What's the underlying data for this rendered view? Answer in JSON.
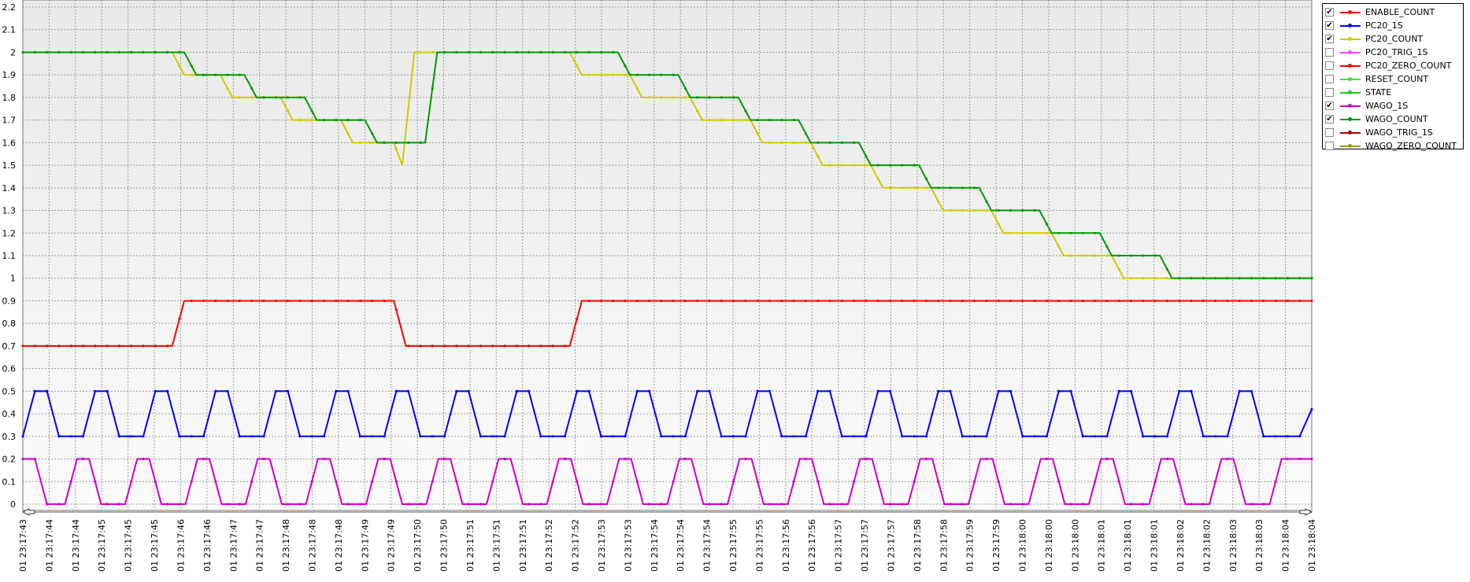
{
  "chart_data": {
    "type": "line",
    "title": "",
    "xlabel": "",
    "ylabel": "",
    "ylim": [
      0,
      2.2
    ],
    "yticks": [
      "0",
      "0.1",
      "0.2",
      "0.3",
      "0.4",
      "0.5",
      "0.6",
      "0.7",
      "0.8",
      "0.9",
      "1",
      "1.1",
      "1.2",
      "1.3",
      "1.4",
      "1.5",
      "1.6",
      "1.7",
      "1.8",
      "1.9",
      "2",
      "2.1",
      "2.2"
    ],
    "xticks": [
      "01 23:17:43",
      "01 23:17:44",
      "01 23:17:44",
      "01 23:17:45",
      "01 23:17:45",
      "01 23:17:45",
      "01 23:17:46",
      "01 23:17:46",
      "01 23:17:47",
      "01 23:17:47",
      "01 23:17:48",
      "01 23:17:48",
      "01 23:17:48",
      "01 23:17:49",
      "01 23:17:49",
      "01 23:17:50",
      "01 23:17:50",
      "01 23:17:51",
      "01 23:17:51",
      "01 23:17:51",
      "01 23:17:52",
      "01 23:17:52",
      "01 23:17:53",
      "01 23:17:53",
      "01 23:17:54",
      "01 23:17:54",
      "01 23:17:54",
      "01 23:17:55",
      "01 23:17:55",
      "01 23:17:56",
      "01 23:17:56",
      "01 23:17:57",
      "01 23:17:57",
      "01 23:17:57",
      "01 23:17:58",
      "01 23:17:58",
      "01 23:17:59",
      "01 23:17:59",
      "01 23:18:00",
      "01 23:18:00",
      "01 23:18:00",
      "01 23:18:01",
      "01 23:18:01",
      "01 23:18:01",
      "01 23:18:02",
      "01 23:18:02",
      "01 23:18:03",
      "01 23:18:03",
      "01 23:18:04",
      "01 23:18:04"
    ],
    "grid": true,
    "legend_position": "top-right",
    "legend": [
      {
        "name": "ENABLE_COUNT",
        "checked": true,
        "color": "#ff0000"
      },
      {
        "name": "PC20_1S",
        "checked": true,
        "color": "#0000ff"
      },
      {
        "name": "PC20_COUNT",
        "checked": true,
        "color": "#cccc00"
      },
      {
        "name": "PC20_TRIG_1S",
        "checked": false,
        "color": "#ff44ff"
      },
      {
        "name": "PC20_ZERO_COUNT",
        "checked": false,
        "color": "#ff0000"
      },
      {
        "name": "RESET_COUNT",
        "checked": false,
        "color": "#44dd44"
      },
      {
        "name": "STATE",
        "checked": false,
        "color": "#22cc22"
      },
      {
        "name": "WAGO_1S",
        "checked": true,
        "color": "#cc00cc"
      },
      {
        "name": "WAGO_COUNT",
        "checked": true,
        "color": "#009900"
      },
      {
        "name": "WAGO_TRIG_1S",
        "checked": false,
        "color": "#aa0000"
      },
      {
        "name": "WAGO_ZERO_COUNT",
        "checked": false,
        "color": "#999900"
      }
    ],
    "series": [
      {
        "name": "ENABLE_COUNT",
        "color": "#ff0000",
        "points": [
          [
            0,
            0.7
          ],
          [
            12.4,
            0.7
          ],
          [
            13.4,
            0.9
          ],
          [
            30.8,
            0.9
          ],
          [
            31.8,
            0.7
          ],
          [
            45.4,
            0.7
          ],
          [
            46.4,
            0.9
          ],
          [
            107,
            0.9
          ]
        ]
      },
      {
        "name": "PC20_COUNT",
        "color": "#cccc00",
        "points": [
          [
            0,
            2.0
          ],
          [
            12.4,
            2.0
          ],
          [
            13.4,
            1.9
          ],
          [
            16.4,
            1.9
          ],
          [
            17.4,
            1.8
          ],
          [
            21.4,
            1.8
          ],
          [
            22.4,
            1.7
          ],
          [
            26.4,
            1.7
          ],
          [
            27.4,
            1.6
          ],
          [
            30.8,
            1.6
          ],
          [
            31.5,
            1.5
          ],
          [
            32.5,
            2.0
          ],
          [
            45.4,
            2.0
          ],
          [
            46.4,
            1.9
          ],
          [
            50.4,
            1.9
          ],
          [
            51.4,
            1.8
          ],
          [
            55.4,
            1.8
          ],
          [
            56.4,
            1.7
          ],
          [
            60.4,
            1.7
          ],
          [
            61.4,
            1.6
          ],
          [
            65.4,
            1.6
          ],
          [
            66.4,
            1.5
          ],
          [
            70.4,
            1.5
          ],
          [
            71.4,
            1.4
          ],
          [
            75.4,
            1.4
          ],
          [
            76.4,
            1.3
          ],
          [
            80.4,
            1.3
          ],
          [
            81.4,
            1.2
          ],
          [
            85.4,
            1.2
          ],
          [
            86.4,
            1.1
          ],
          [
            90.4,
            1.1
          ],
          [
            91.4,
            1.0
          ],
          [
            107,
            1.0
          ]
        ]
      },
      {
        "name": "WAGO_COUNT",
        "color": "#009900",
        "points": [
          [
            0,
            2.0
          ],
          [
            13.4,
            2.0
          ],
          [
            14.4,
            1.9
          ],
          [
            18.4,
            1.9
          ],
          [
            19.4,
            1.8
          ],
          [
            23.4,
            1.8
          ],
          [
            24.4,
            1.7
          ],
          [
            28.4,
            1.7
          ],
          [
            29.4,
            1.6
          ],
          [
            33.4,
            1.6
          ],
          [
            34.4,
            2.0
          ],
          [
            49.4,
            2.0
          ],
          [
            50.4,
            1.9
          ],
          [
            54.4,
            1.9
          ],
          [
            55.4,
            1.8
          ],
          [
            59.4,
            1.8
          ],
          [
            60.4,
            1.7
          ],
          [
            64.4,
            1.7
          ],
          [
            65.4,
            1.6
          ],
          [
            69.4,
            1.6
          ],
          [
            70.4,
            1.5
          ],
          [
            74.4,
            1.5
          ],
          [
            75.4,
            1.4
          ],
          [
            79.4,
            1.4
          ],
          [
            80.4,
            1.3
          ],
          [
            84.4,
            1.3
          ],
          [
            85.4,
            1.2
          ],
          [
            89.4,
            1.2
          ],
          [
            90.4,
            1.1
          ],
          [
            94.4,
            1.1
          ],
          [
            95.4,
            1.0
          ],
          [
            107,
            1.0
          ]
        ]
      },
      {
        "name": "PC20_1S",
        "color": "#0000ff",
        "points": [
          [
            0,
            0.3
          ],
          [
            1,
            0.5
          ],
          [
            2,
            0.5
          ],
          [
            3,
            0.3
          ],
          [
            5,
            0.3
          ],
          [
            6,
            0.5
          ],
          [
            7,
            0.5
          ],
          [
            8,
            0.3
          ],
          [
            10,
            0.3
          ],
          [
            11,
            0.5
          ],
          [
            12,
            0.5
          ],
          [
            13,
            0.3
          ],
          [
            15,
            0.3
          ],
          [
            16,
            0.5
          ],
          [
            17,
            0.5
          ],
          [
            18,
            0.3
          ],
          [
            20,
            0.3
          ],
          [
            21,
            0.5
          ],
          [
            22,
            0.5
          ],
          [
            23,
            0.3
          ],
          [
            25,
            0.3
          ],
          [
            26,
            0.5
          ],
          [
            27,
            0.5
          ],
          [
            28,
            0.3
          ],
          [
            30,
            0.3
          ],
          [
            31,
            0.5
          ],
          [
            32,
            0.5
          ],
          [
            33,
            0.3
          ],
          [
            35,
            0.3
          ],
          [
            36,
            0.5
          ],
          [
            37,
            0.5
          ],
          [
            38,
            0.3
          ],
          [
            40,
            0.3
          ],
          [
            41,
            0.5
          ],
          [
            42,
            0.5
          ],
          [
            43,
            0.3
          ],
          [
            45,
            0.3
          ],
          [
            46,
            0.5
          ],
          [
            47,
            0.5
          ],
          [
            48,
            0.3
          ],
          [
            50,
            0.3
          ],
          [
            51,
            0.5
          ],
          [
            52,
            0.5
          ],
          [
            53,
            0.3
          ],
          [
            55,
            0.3
          ],
          [
            56,
            0.5
          ],
          [
            57,
            0.5
          ],
          [
            58,
            0.3
          ],
          [
            60,
            0.3
          ],
          [
            61,
            0.5
          ],
          [
            62,
            0.5
          ],
          [
            63,
            0.3
          ],
          [
            65,
            0.3
          ],
          [
            66,
            0.5
          ],
          [
            67,
            0.5
          ],
          [
            68,
            0.3
          ],
          [
            70,
            0.3
          ],
          [
            71,
            0.5
          ],
          [
            72,
            0.5
          ],
          [
            73,
            0.3
          ],
          [
            75,
            0.3
          ],
          [
            76,
            0.5
          ],
          [
            77,
            0.5
          ],
          [
            78,
            0.3
          ],
          [
            80,
            0.3
          ],
          [
            81,
            0.5
          ],
          [
            82,
            0.5
          ],
          [
            83,
            0.3
          ],
          [
            85,
            0.3
          ],
          [
            86,
            0.5
          ],
          [
            87,
            0.5
          ],
          [
            88,
            0.3
          ],
          [
            90,
            0.3
          ],
          [
            91,
            0.5
          ],
          [
            92,
            0.5
          ],
          [
            93,
            0.3
          ],
          [
            95,
            0.3
          ],
          [
            96,
            0.5
          ],
          [
            97,
            0.5
          ],
          [
            98,
            0.3
          ],
          [
            100,
            0.3
          ],
          [
            101,
            0.5
          ],
          [
            102,
            0.5
          ],
          [
            103,
            0.3
          ],
          [
            105,
            0.3
          ],
          [
            106,
            0.3
          ],
          [
            107,
            0.42
          ]
        ]
      },
      {
        "name": "WAGO_1S",
        "color": "#cc00cc",
        "points": [
          [
            0,
            0.2
          ],
          [
            1,
            0.2
          ],
          [
            2,
            0.0
          ],
          [
            3.5,
            0.0
          ],
          [
            4.5,
            0.2
          ],
          [
            5.5,
            0.2
          ],
          [
            6.5,
            0.0
          ],
          [
            8.5,
            0.0
          ],
          [
            9.5,
            0.2
          ],
          [
            10.5,
            0.2
          ],
          [
            11.5,
            0.0
          ],
          [
            13.5,
            0.0
          ],
          [
            14.5,
            0.2
          ],
          [
            15.5,
            0.2
          ],
          [
            16.5,
            0.0
          ],
          [
            18.5,
            0.0
          ],
          [
            19.5,
            0.2
          ],
          [
            20.5,
            0.2
          ],
          [
            21.5,
            0.0
          ],
          [
            23.5,
            0.0
          ],
          [
            24.5,
            0.2
          ],
          [
            25.5,
            0.2
          ],
          [
            26.5,
            0.0
          ],
          [
            28.5,
            0.0
          ],
          [
            29.5,
            0.2
          ],
          [
            30.5,
            0.2
          ],
          [
            31.5,
            0.0
          ],
          [
            33.5,
            0.0
          ],
          [
            34.5,
            0.2
          ],
          [
            35.5,
            0.2
          ],
          [
            36.5,
            0.0
          ],
          [
            38.5,
            0.0
          ],
          [
            39.5,
            0.2
          ],
          [
            40.5,
            0.2
          ],
          [
            41.5,
            0.0
          ],
          [
            43.5,
            0.0
          ],
          [
            44.5,
            0.2
          ],
          [
            45.5,
            0.2
          ],
          [
            46.5,
            0.0
          ],
          [
            48.5,
            0.0
          ],
          [
            49.5,
            0.2
          ],
          [
            50.5,
            0.2
          ],
          [
            51.5,
            0.0
          ],
          [
            53.5,
            0.0
          ],
          [
            54.5,
            0.2
          ],
          [
            55.5,
            0.2
          ],
          [
            56.5,
            0.0
          ],
          [
            58.5,
            0.0
          ],
          [
            59.5,
            0.2
          ],
          [
            60.5,
            0.2
          ],
          [
            61.5,
            0.0
          ],
          [
            63.5,
            0.0
          ],
          [
            64.5,
            0.2
          ],
          [
            65.5,
            0.2
          ],
          [
            66.5,
            0.0
          ],
          [
            68.5,
            0.0
          ],
          [
            69.5,
            0.2
          ],
          [
            70.5,
            0.2
          ],
          [
            71.5,
            0.0
          ],
          [
            73.5,
            0.0
          ],
          [
            74.5,
            0.2
          ],
          [
            75.5,
            0.2
          ],
          [
            76.5,
            0.0
          ],
          [
            78.5,
            0.0
          ],
          [
            79.5,
            0.2
          ],
          [
            80.5,
            0.2
          ],
          [
            81.5,
            0.0
          ],
          [
            83.5,
            0.0
          ],
          [
            84.5,
            0.2
          ],
          [
            85.5,
            0.2
          ],
          [
            86.5,
            0.0
          ],
          [
            88.5,
            0.0
          ],
          [
            89.5,
            0.2
          ],
          [
            90.5,
            0.2
          ],
          [
            91.5,
            0.0
          ],
          [
            93.5,
            0.0
          ],
          [
            94.5,
            0.2
          ],
          [
            95.5,
            0.2
          ],
          [
            96.5,
            0.0
          ],
          [
            98.5,
            0.0
          ],
          [
            99.5,
            0.2
          ],
          [
            100.5,
            0.2
          ],
          [
            101.5,
            0.0
          ],
          [
            103.5,
            0.0
          ],
          [
            104.5,
            0.2
          ],
          [
            107,
            0.2
          ]
        ]
      }
    ]
  }
}
